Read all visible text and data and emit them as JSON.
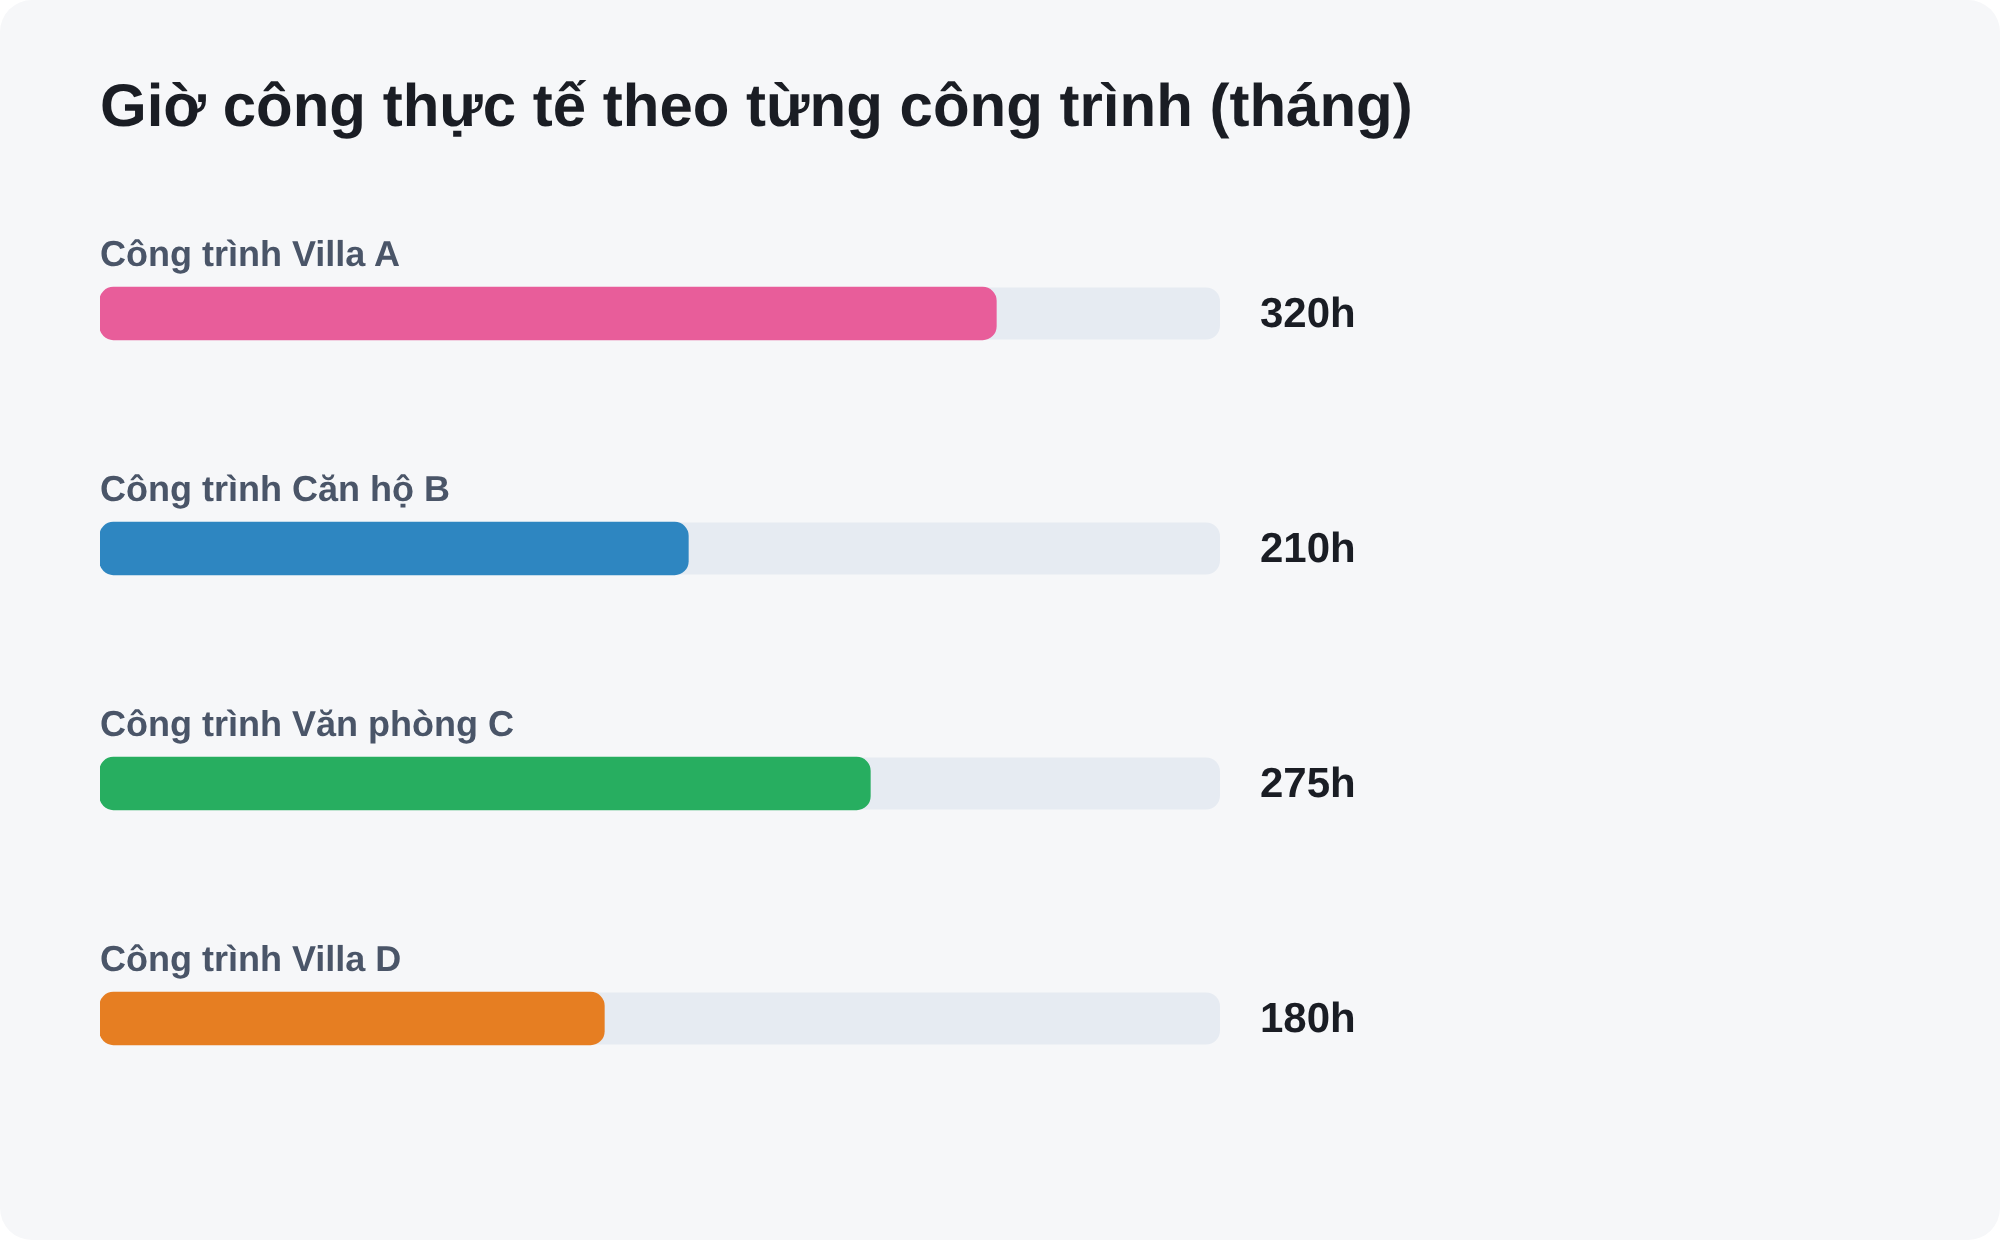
{
  "chart_data": {
    "type": "bar",
    "orientation": "horizontal",
    "title": "Giờ công thực tế theo từng công trình (tháng)",
    "categories": [
      "Công trình Villa A",
      "Công trình Căn hộ B",
      "Công trình Văn phòng C",
      "Công trình Villa D"
    ],
    "values": [
      320,
      210,
      275,
      180
    ],
    "colors": [
      "#e85d9a",
      "#2e86c1",
      "#27ae60",
      "#e67e22"
    ],
    "value_labels": [
      "320h",
      "210h",
      "275h",
      "180h"
    ],
    "xlim": [
      0,
      400
    ],
    "tick_labels": "y"
  }
}
